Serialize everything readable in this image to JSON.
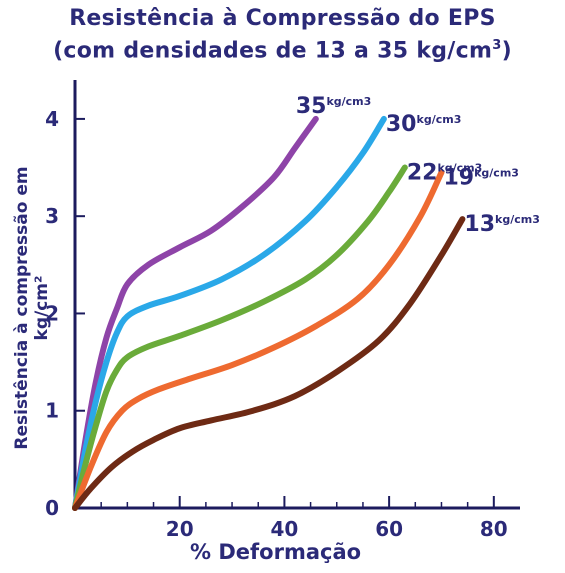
{
  "title_line1": "Resistência à Compressão do EPS",
  "title_line2": "(com densidades de 13 a 35 kg/cm",
  "title_line2_sup": "3",
  "title_line2_end": ")",
  "chart_data": {
    "type": "line",
    "xlabel": "% Deformação",
    "ylabel": "Resistência à compressão em kg/cm²",
    "xlim": [
      0,
      85
    ],
    "ylim": [
      0,
      4.4
    ],
    "xticks": [
      20,
      40,
      60,
      80
    ],
    "yticks": [
      0,
      1,
      2,
      3,
      4
    ],
    "grid": false,
    "series": [
      {
        "name": "35",
        "unit": "kg/cm3",
        "color": "#8e44a8",
        "x": [
          0,
          2,
          4,
          6,
          8,
          10,
          14,
          20,
          26,
          32,
          38,
          42,
          46
        ],
        "y": [
          0,
          0.7,
          1.3,
          1.75,
          2.05,
          2.3,
          2.5,
          2.68,
          2.85,
          3.1,
          3.4,
          3.7,
          4.0
        ]
      },
      {
        "name": "30",
        "unit": "kg/cm3",
        "color": "#2aa8e8",
        "x": [
          0,
          2,
          4,
          6,
          8,
          10,
          14,
          20,
          28,
          36,
          44,
          50,
          55,
          59
        ],
        "y": [
          0,
          0.6,
          1.1,
          1.5,
          1.8,
          1.97,
          2.08,
          2.18,
          2.35,
          2.6,
          2.95,
          3.3,
          3.65,
          4.0
        ]
      },
      {
        "name": "22",
        "unit": "kg/cm3",
        "color": "#6aab3a",
        "x": [
          0,
          2,
          4,
          6,
          8,
          10,
          14,
          20,
          28,
          36,
          44,
          50,
          56,
          60,
          63
        ],
        "y": [
          0,
          0.45,
          0.85,
          1.2,
          1.42,
          1.55,
          1.66,
          1.77,
          1.93,
          2.12,
          2.35,
          2.6,
          2.95,
          3.25,
          3.5
        ]
      },
      {
        "name": "19",
        "unit": "kg/cm3",
        "color": "#ee6a30",
        "x": [
          0,
          3,
          6,
          9,
          12,
          16,
          22,
          30,
          38,
          46,
          54,
          60,
          66,
          70
        ],
        "y": [
          0,
          0.42,
          0.78,
          1.0,
          1.12,
          1.22,
          1.33,
          1.47,
          1.65,
          1.87,
          2.15,
          2.5,
          3.0,
          3.45
        ]
      },
      {
        "name": "13",
        "unit": "kg/cm3",
        "color": "#6e2a14",
        "x": [
          0,
          3,
          7,
          11,
          15,
          20,
          26,
          34,
          42,
          50,
          58,
          64,
          70,
          74
        ],
        "y": [
          0,
          0.2,
          0.42,
          0.58,
          0.7,
          0.82,
          0.9,
          1.0,
          1.15,
          1.4,
          1.72,
          2.1,
          2.6,
          2.97
        ]
      }
    ]
  }
}
